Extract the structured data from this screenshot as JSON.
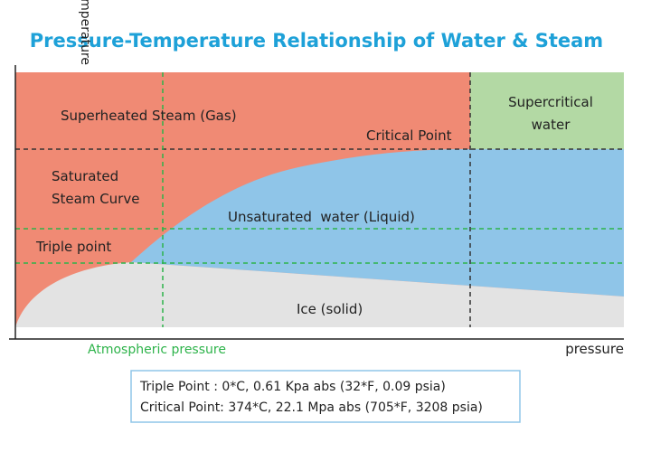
{
  "title": "Pressure-Temperature Relationship of Water & Steam",
  "axes": {
    "y_label": "temperature",
    "x_label": "pressure"
  },
  "regions": {
    "superheated": "Superheated Steam (Gas)",
    "critical_point": "Critical Point",
    "supercritical": [
      "Supercritical",
      "water"
    ],
    "saturated": [
      "Saturated",
      "Steam Curve"
    ],
    "liquid": "Unsaturated  water (Liquid)",
    "triple_point": "Triple point",
    "ice": "Ice (solid)"
  },
  "atmospheric": "Atmospheric pressure",
  "info": [
    "Triple Point : 0*C, 0.61 Kpa abs (32*F, 0.09 psia)",
    "Critical Point: 374*C, 22.1 Mpa abs (705*F, 3208 psia)"
  ]
}
